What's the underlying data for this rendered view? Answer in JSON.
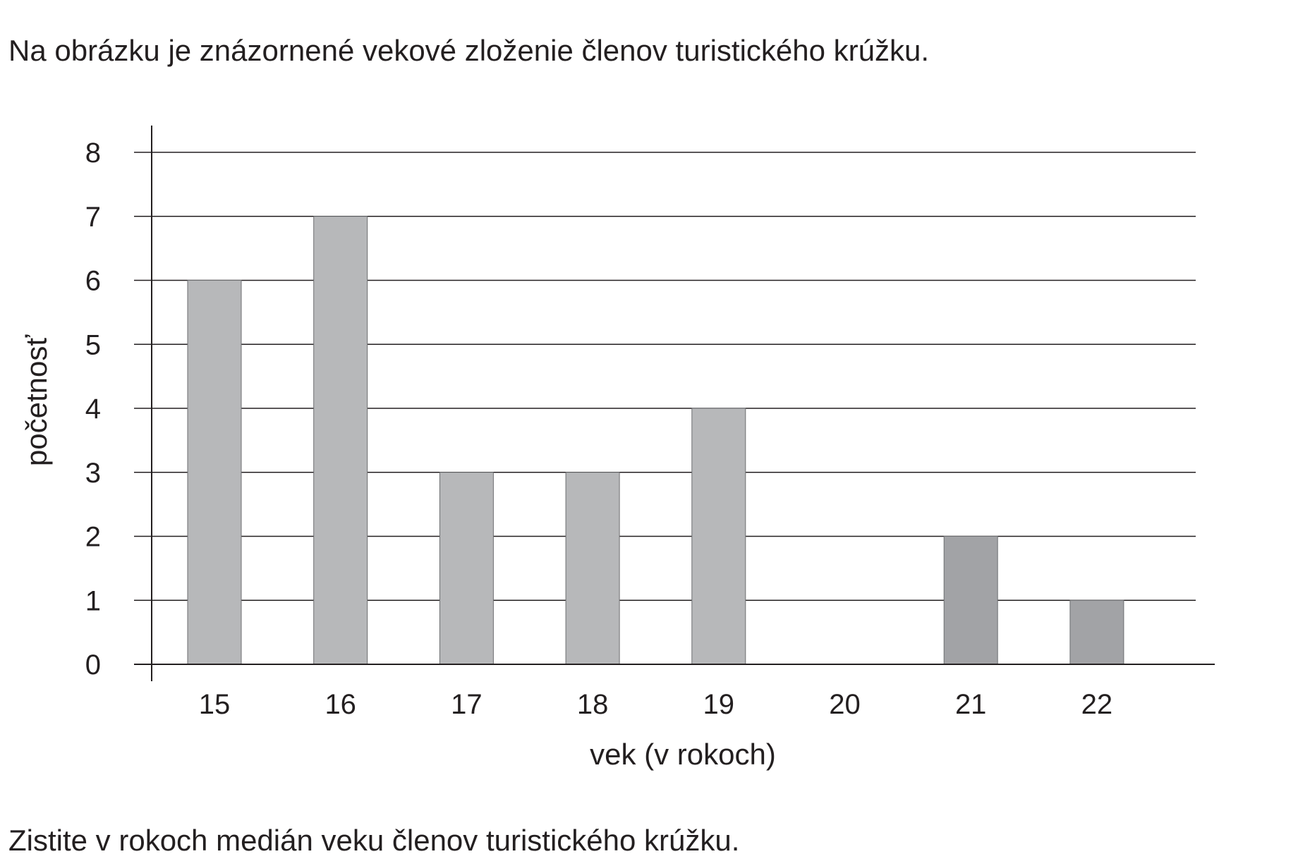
{
  "intro_text": "Na obrázku je znázornené vekové zloženie členov turistického krúžku.",
  "question_text": "Zistite v rokoch medián veku členov turistického krúžku.",
  "chart_data": {
    "type": "bar",
    "categories": [
      "15",
      "16",
      "17",
      "18",
      "19",
      "20",
      "21",
      "22"
    ],
    "values": [
      6,
      7,
      3,
      3,
      4,
      0,
      2,
      1
    ],
    "xlabel": "vek (v rokoch)",
    "ylabel": "početnosť",
    "ylim": [
      0,
      8
    ],
    "yticks": [
      "0",
      "1",
      "2",
      "3",
      "4",
      "5",
      "6",
      "7",
      "8"
    ],
    "grid": true,
    "legend": "none",
    "colors": {
      "bar_light": "#b7b8ba",
      "bar_dark": "#a2a3a6",
      "bar_dark_categories": [
        "21",
        "22"
      ],
      "grid": "#231f20",
      "axis": "#231f20"
    }
  }
}
